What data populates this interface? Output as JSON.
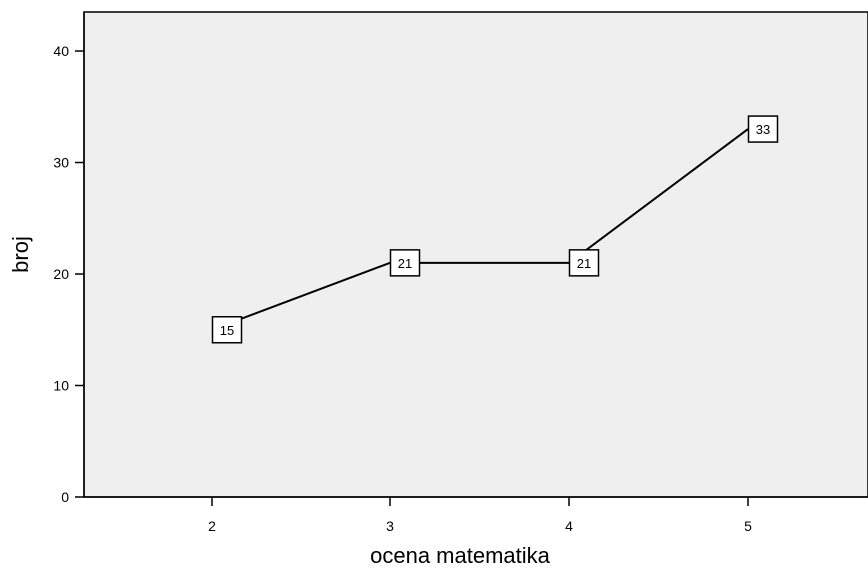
{
  "chart_data": {
    "type": "line",
    "xlabel": "ocena matematika",
    "ylabel": "broj",
    "categories": [
      "2",
      "3",
      "4",
      "5"
    ],
    "series": [
      {
        "values": [
          15,
          21,
          21,
          33
        ]
      }
    ],
    "data_labels": [
      "15",
      "21",
      "21",
      "33"
    ],
    "yticks": [
      "0",
      "10",
      "20",
      "30",
      "40"
    ],
    "ylim": [
      0,
      43.5
    ],
    "grid": false,
    "plot_background": "#efefef",
    "line_color": "#000000",
    "marker": "labeled-square"
  }
}
